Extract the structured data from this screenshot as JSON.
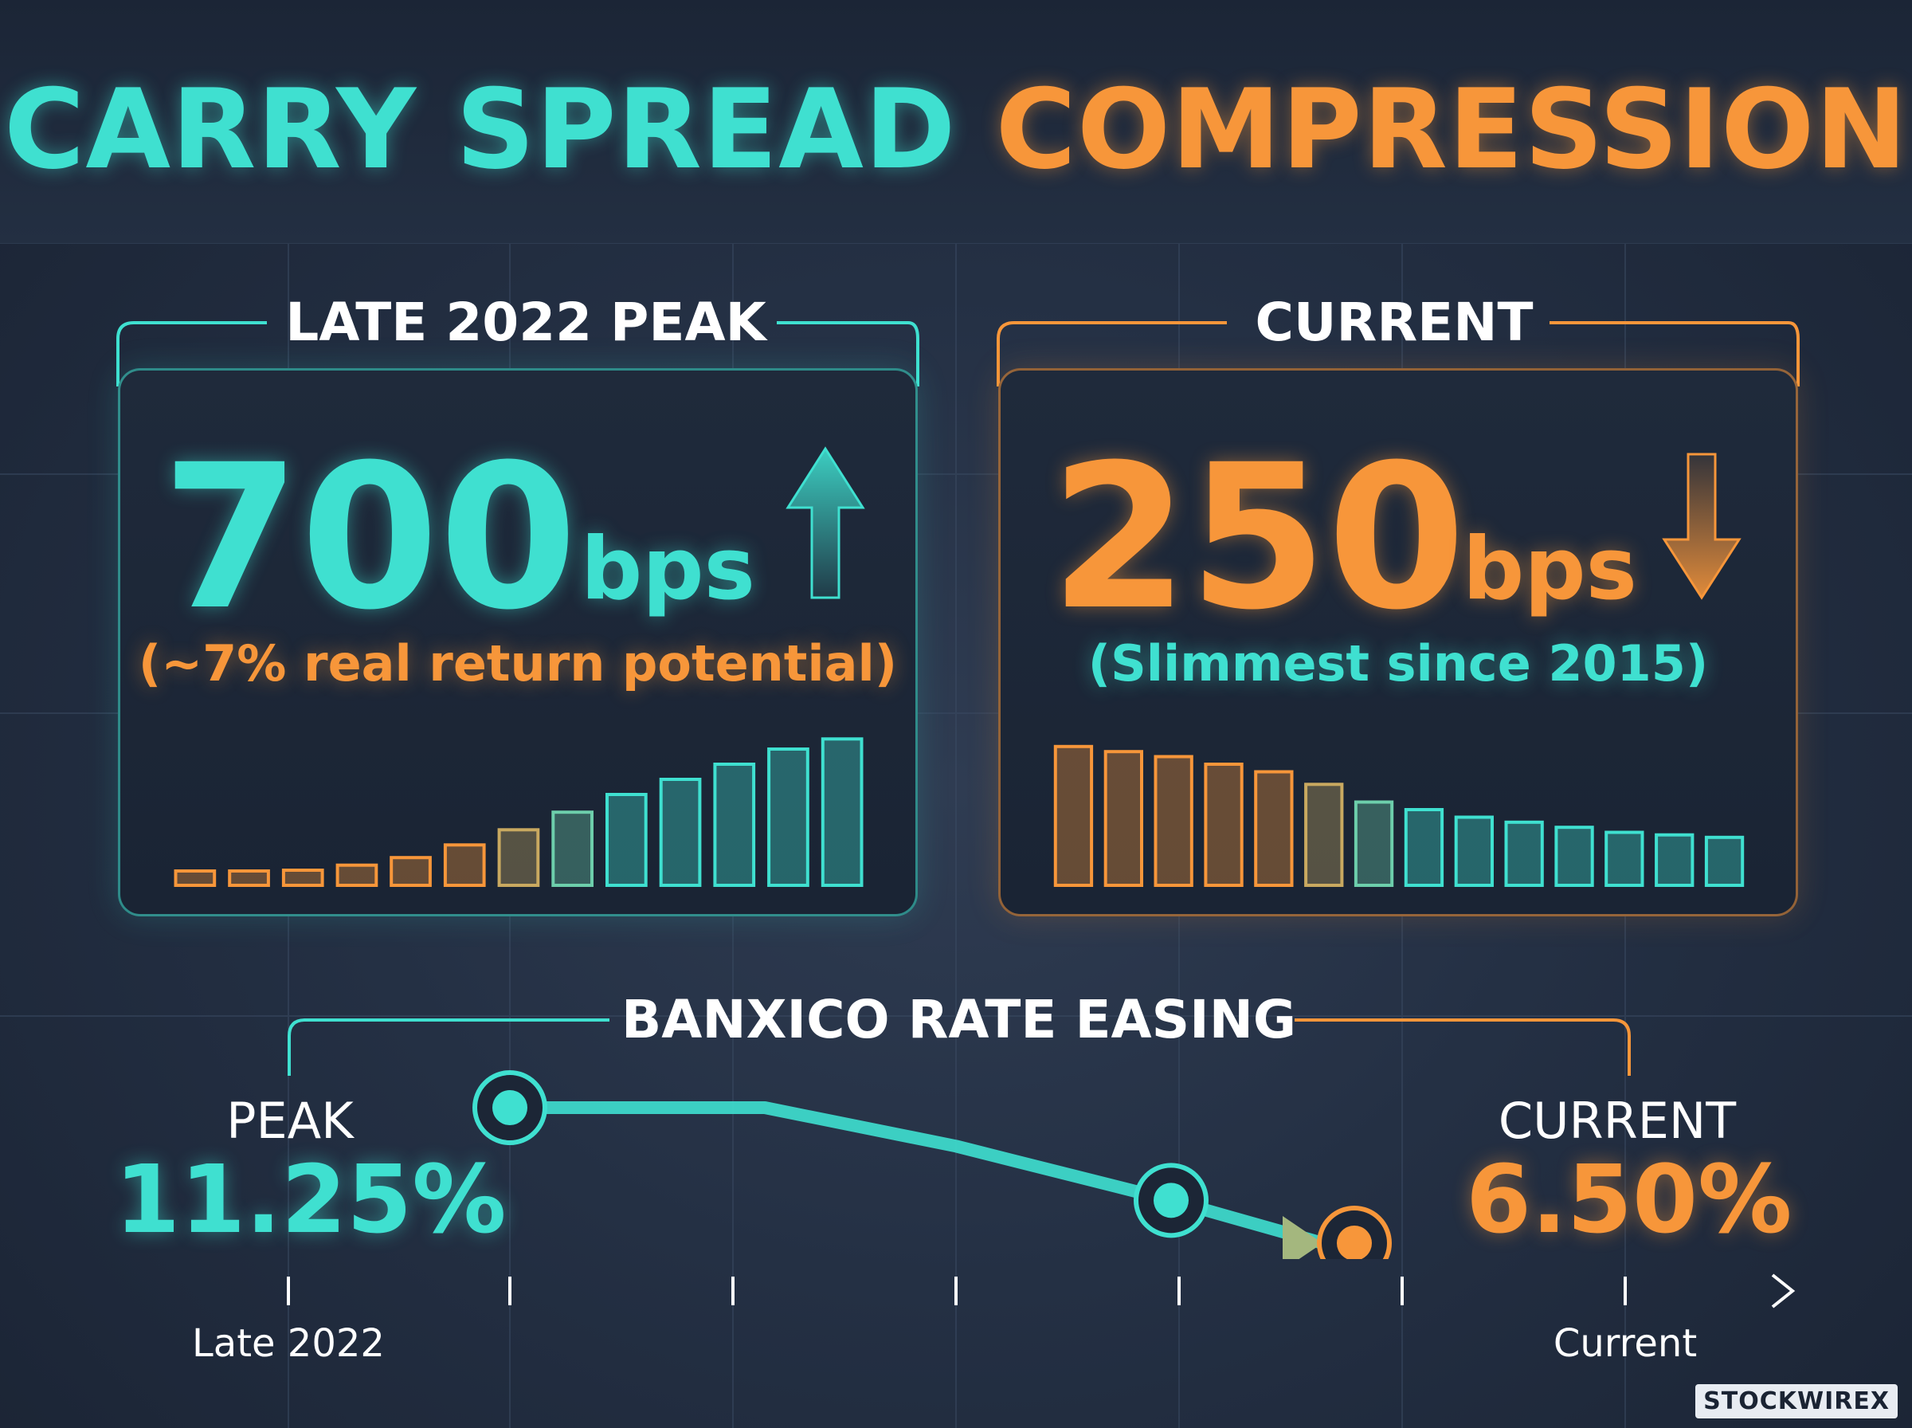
{
  "title": {
    "part1": "CARRY SPREAD",
    "part2": "COMPRESSION"
  },
  "colors": {
    "teal": "#3fe0d0",
    "orange": "#f7963a",
    "background": "#243044"
  },
  "peak_panel": {
    "label": "LATE 2022 PEAK",
    "value": "700",
    "unit": "bps",
    "note": "(~7% real return potential)",
    "icon": "arrow-up-icon",
    "bars": [
      1,
      1,
      1.2,
      1.6,
      2.2,
      3.2,
      4.4,
      5.8,
      7.2,
      8.4,
      9.6,
      10.8,
      11.6
    ]
  },
  "current_panel": {
    "label": "CURRENT",
    "value": "250",
    "unit": "bps",
    "note": "(Slimmest since 2015)",
    "icon": "arrow-down-icon",
    "bars": [
      11,
      10.6,
      10.2,
      9.6,
      9,
      8,
      6.6,
      6,
      5.4,
      5,
      4.6,
      4.2,
      4,
      3.8
    ]
  },
  "rate_section": {
    "label": "BANXICO RATE EASING",
    "peak_label": "PEAK",
    "peak_value": "11.25%",
    "current_label": "CURRENT",
    "current_value": "6.50%",
    "axis_start": "Late 2022",
    "axis_end": "Current",
    "path_values": [
      11.25,
      11.25,
      9.9,
      8.0,
      6.5
    ]
  },
  "brand": "STOCKWIREX"
}
